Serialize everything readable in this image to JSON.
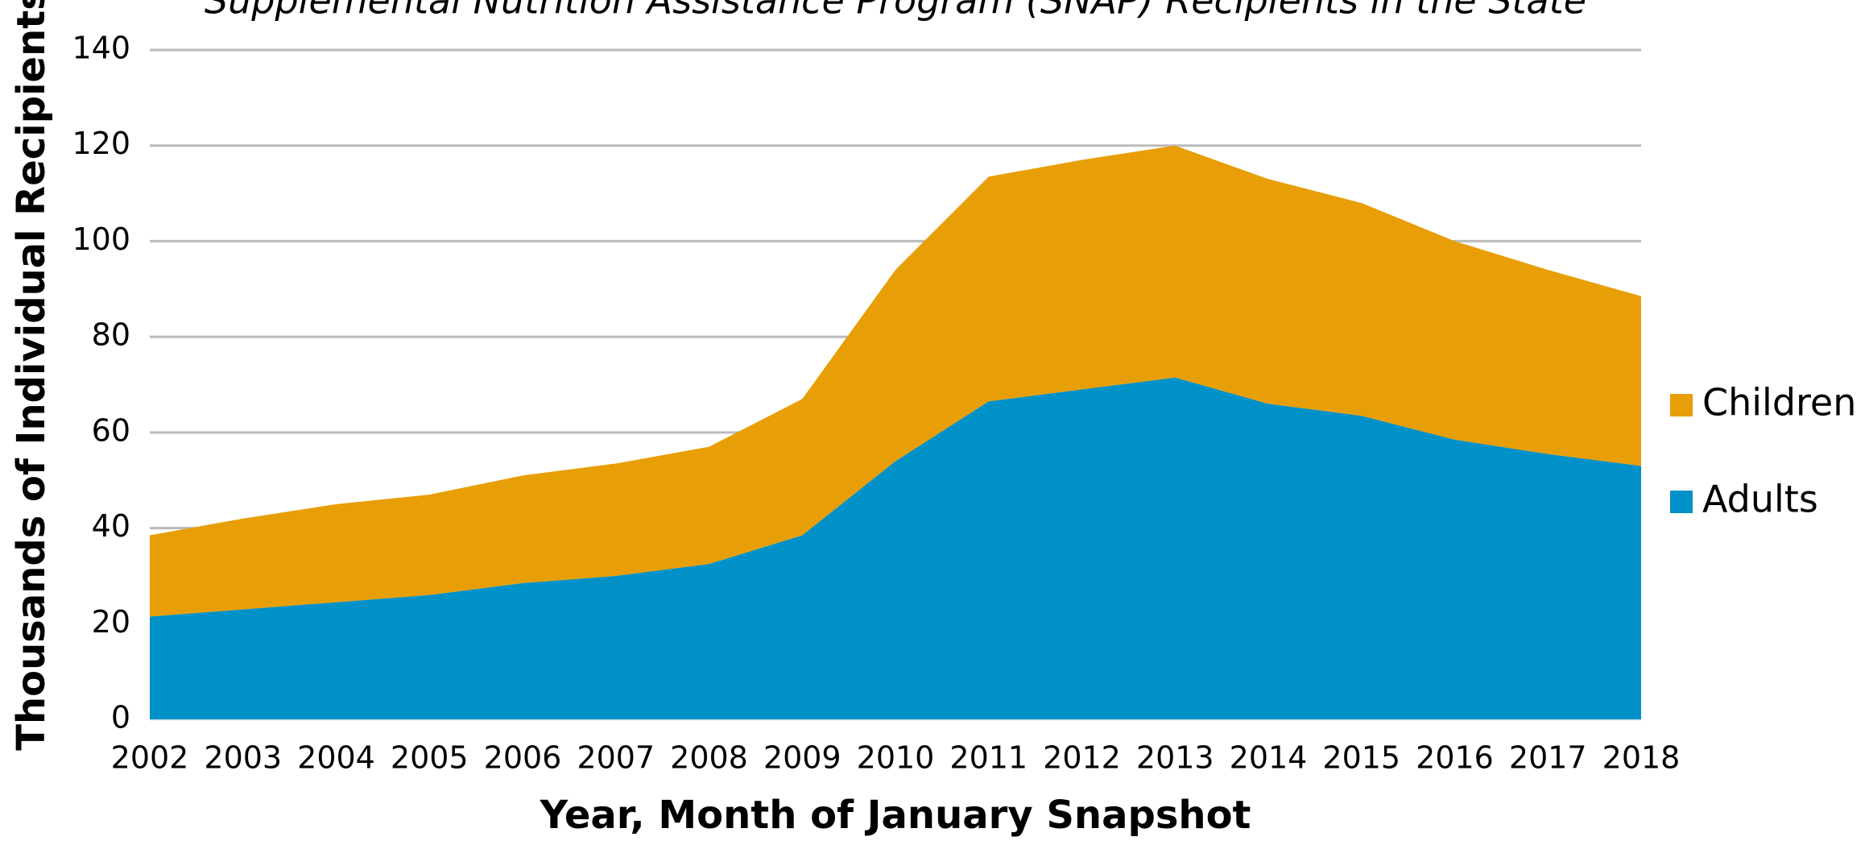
{
  "chart_data": {
    "type": "stacked_area",
    "title": "Supplemental Nutrition Assistance Program (SNAP) Recipients in the State",
    "x_label": "Year, Month of January Snapshot",
    "y_label": "Thousands of Individual Recipients",
    "categories": [
      "2002",
      "2003",
      "2004",
      "2005",
      "2006",
      "2007",
      "2008",
      "2009",
      "2010",
      "2011",
      "2012",
      "2013",
      "2014",
      "2015",
      "2016",
      "2017",
      "2018"
    ],
    "series": [
      {
        "name": "Adults",
        "color": "#0091c8",
        "values": [
          21.5,
          23,
          24.5,
          26,
          28.5,
          30,
          32.5,
          38.5,
          54,
          66.5,
          69,
          71.5,
          66,
          63.5,
          58.5,
          55.5,
          53
        ]
      },
      {
        "name": "Children",
        "color": "#e89e06",
        "values": [
          17,
          19,
          20.5,
          21,
          22.5,
          23.5,
          24.5,
          28.5,
          40,
          47,
          48,
          48.5,
          47,
          44.5,
          41.5,
          38.5,
          35.5
        ]
      }
    ],
    "ylim": [
      0,
      140
    ],
    "yticks": [
      0,
      20,
      40,
      60,
      80,
      100,
      120,
      140
    ],
    "grid": true,
    "legend": "right"
  }
}
